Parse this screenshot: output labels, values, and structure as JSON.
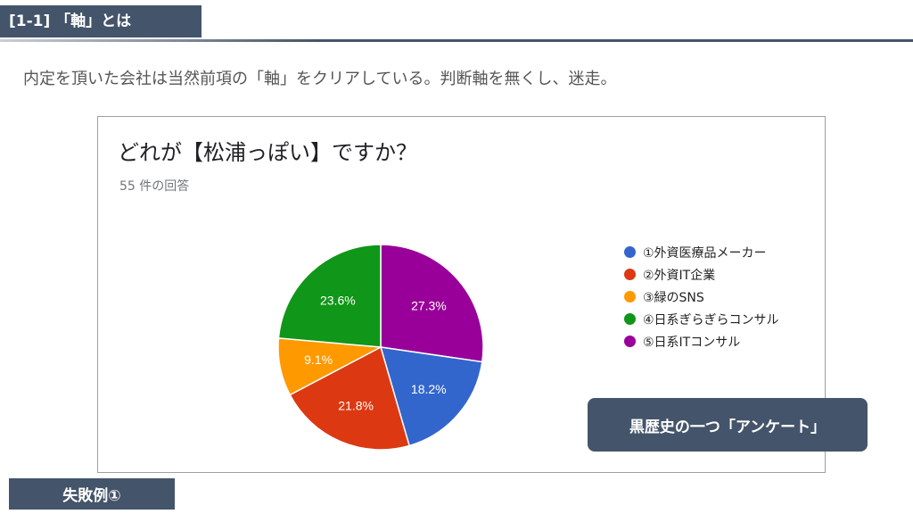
{
  "header": {
    "section_label": "[1-1] 「軸」とは"
  },
  "subtitle": "内定を頂いた会社は当然前項の「軸」をクリアしている。判断軸を無くし、迷走。",
  "form": {
    "question": "どれが【松浦っぽい】ですか？",
    "response_count": "55 件の回答"
  },
  "chart_data": {
    "type": "pie",
    "categories": [
      "①外資医療品メーカー",
      "②外資IT企業",
      "③緑のSNS",
      "④日系ぎらぎらコンサル",
      "⑤日系ITコンサル"
    ],
    "values": [
      18.2,
      21.8,
      9.1,
      23.6,
      27.3
    ],
    "labels": [
      "18.2%",
      "21.8%",
      "9.1%",
      "23.6%",
      "27.3%"
    ],
    "colors": [
      "#3366cc",
      "#dc3912",
      "#ff9900",
      "#109618",
      "#990099"
    ],
    "legend_position": "right"
  },
  "callout": "黒歴史の一つ「アンケート」",
  "footer": {
    "label": "失敗例①"
  }
}
